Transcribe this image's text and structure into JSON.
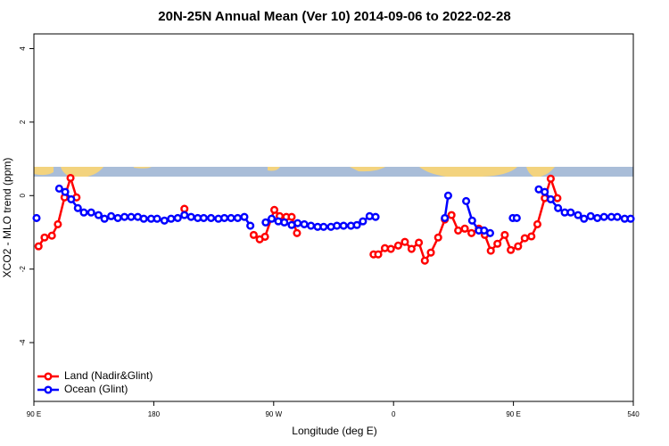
{
  "chart_data": {
    "type": "line",
    "title": "20N-25N Annual Mean (Ver 10)   2014-09-06 to 2022-02-28",
    "xlabel": "Longitude (deg E)",
    "ylabel": "XCO2 - MLO trend (ppm)",
    "xlim": [
      90,
      540
    ],
    "ylim": [
      -5.6,
      4.4
    ],
    "xticks": [
      {
        "value": 90,
        "label": "90 E"
      },
      180,
      {
        "value": 270,
        "label": "90 W"
      },
      {
        "value": 360,
        "label": "0"
      },
      {
        "value": 450,
        "label": "90 E"
      },
      540
    ],
    "yticks": [
      4,
      2,
      0,
      -2,
      -4
    ],
    "legend": "bottom-left",
    "series": [
      {
        "name": "Land (Nadir&Glint)",
        "color": "#ff0000",
        "x": [
          93.5,
          98,
          103.5,
          108,
          113,
          117.5,
          122,
          160,
          203,
          230,
          255,
          259.5,
          263.5,
          270.5,
          274.5,
          279.5,
          283.5,
          287.5,
          315,
          345,
          348.5,
          353.5,
          358,
          363.5,
          368.5,
          373.5,
          379,
          383.5,
          388,
          393.5,
          398.5,
          403.5,
          408.5,
          413.5,
          418.5,
          424,
          428.5,
          433,
          438,
          443.5,
          448,
          453.5,
          458.5,
          463.5,
          468,
          473.5,
          478,
          483
        ],
        "values": [
          -1.38,
          -1.14,
          -1.09,
          -0.78,
          -0.05,
          0.48,
          -0.05,
          null,
          -0.36,
          null,
          -1.07,
          -1.19,
          -1.12,
          -0.39,
          -0.56,
          -0.58,
          -0.58,
          -1.02,
          null,
          -1.6,
          -1.6,
          -1.43,
          -1.45,
          -1.36,
          -1.26,
          -1.45,
          -1.28,
          -1.77,
          -1.55,
          -1.14,
          -0.65,
          -0.53,
          -0.95,
          -0.9,
          -1.02,
          -0.9,
          -1.07,
          -1.5,
          -1.31,
          -1.07,
          -1.48,
          -1.38,
          -1.16,
          -1.11,
          -0.78,
          -0.07,
          0.46,
          -0.07
        ]
      },
      {
        "name": "Ocean (Glint)",
        "color": "#0000ff",
        "x": [
          92,
          100,
          109,
          113.5,
          118,
          123,
          127.5,
          133,
          138.5,
          143,
          148,
          153,
          158,
          163,
          168,
          172.5,
          178,
          182.5,
          188,
          193,
          198,
          203,
          208,
          213,
          217.5,
          223,
          228.5,
          233,
          238,
          243,
          248,
          252.5,
          258,
          264,
          268.5,
          273.5,
          278,
          283.5,
          288,
          293,
          298,
          303,
          307.5,
          313,
          317.5,
          322.5,
          328,
          332.5,
          337,
          342,
          346.5,
          372,
          398.5,
          401,
          408,
          414.5,
          419,
          424,
          428,
          432.5,
          440,
          449.5,
          452.5,
          460,
          469,
          473.5,
          478,
          483.5,
          488.5,
          493,
          498.5,
          503,
          508,
          513,
          518,
          523.5,
          528,
          533.5,
          538
        ],
        "values": [
          -0.61,
          null,
          0.19,
          0.1,
          -0.1,
          -0.34,
          -0.46,
          -0.46,
          -0.53,
          -0.63,
          -0.56,
          -0.61,
          -0.58,
          -0.58,
          -0.58,
          -0.63,
          -0.63,
          -0.63,
          -0.68,
          -0.63,
          -0.61,
          -0.53,
          -0.58,
          -0.61,
          -0.61,
          -0.61,
          -0.63,
          -0.61,
          -0.61,
          -0.61,
          -0.58,
          -0.82,
          null,
          -0.73,
          -0.63,
          -0.7,
          -0.73,
          -0.8,
          -0.75,
          -0.78,
          -0.82,
          -0.85,
          -0.85,
          -0.85,
          -0.82,
          -0.82,
          -0.82,
          -0.8,
          -0.7,
          -0.56,
          -0.58,
          null,
          -0.61,
          0,
          null,
          -0.15,
          -0.68,
          -0.95,
          -0.95,
          -1.02,
          null,
          -0.61,
          -0.61,
          null,
          0.17,
          0.1,
          -0.1,
          -0.34,
          -0.46,
          -0.46,
          -0.53,
          -0.63,
          -0.56,
          -0.61,
          -0.58,
          -0.58,
          -0.58,
          -0.63,
          -0.63
        ]
      }
    ]
  }
}
